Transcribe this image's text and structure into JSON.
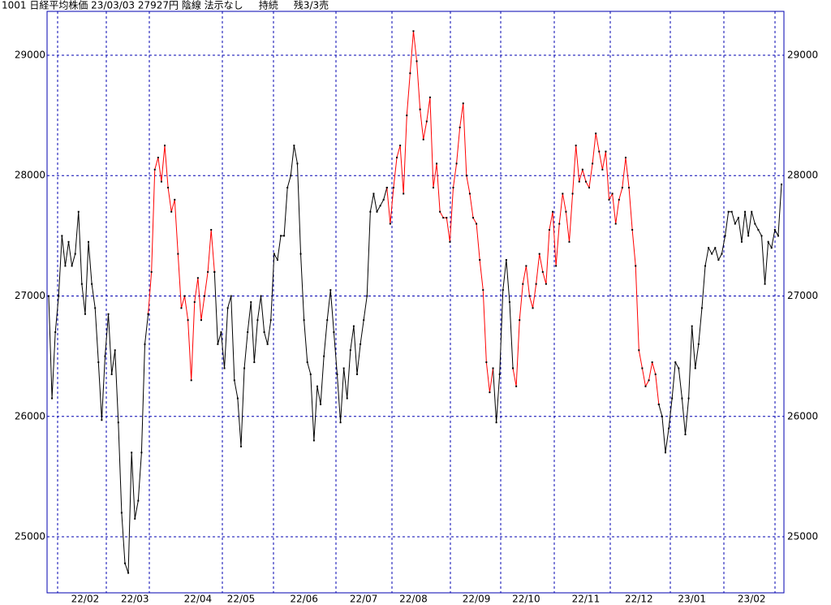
{
  "chart_data": {
    "type": "line",
    "title": "1001 日経平均株価 23/03/03 27927円 陰線 法示なし     持続     残3/3売",
    "categories": [
      null,
      null,
      null,
      null,
      null,
      null,
      null,
      null,
      null,
      null,
      null,
      "22/02",
      null,
      null,
      null,
      null,
      null,
      null,
      null,
      null,
      null,
      null,
      null,
      null,
      null,
      null,
      "22/03",
      null,
      null,
      null,
      null,
      null,
      null,
      null,
      null,
      null,
      null,
      null,
      null,
      null,
      null,
      null,
      null,
      null,
      null,
      "22/04",
      null,
      null,
      null,
      null,
      null,
      null,
      null,
      null,
      null,
      null,
      null,
      null,
      "22/05",
      null,
      null,
      null,
      null,
      null,
      null,
      null,
      null,
      null,
      null,
      null,
      null,
      null,
      null,
      null,
      null,
      null,
      null,
      "22/06",
      null,
      null,
      null,
      null,
      null,
      null,
      null,
      null,
      null,
      null,
      null,
      null,
      null,
      null,
      null,
      null,
      null,
      "22/07",
      null,
      null,
      null,
      null,
      null,
      null,
      null,
      null,
      null,
      null,
      null,
      null,
      null,
      null,
      "22/08",
      null,
      null,
      null,
      null,
      null,
      null,
      null,
      null,
      null,
      null,
      null,
      null,
      null,
      null,
      null,
      null,
      null,
      null,
      "22/09",
      null,
      null,
      null,
      null,
      null,
      null,
      null,
      null,
      null,
      null,
      null,
      null,
      null,
      null,
      "22/10",
      null,
      null,
      null,
      null,
      null,
      null,
      null,
      null,
      null,
      null,
      null,
      null,
      null,
      null,
      null,
      null,
      null,
      "22/11",
      null,
      null,
      null,
      null,
      null,
      null,
      null,
      null,
      null,
      null,
      null,
      null,
      null,
      null,
      null,
      "22/12",
      null,
      null,
      null,
      null,
      null,
      null,
      null,
      null,
      null,
      null,
      null,
      null,
      null,
      null,
      null,
      "23/01",
      null,
      null,
      null,
      null,
      null,
      null,
      null,
      null,
      null,
      null,
      null,
      null,
      null,
      null,
      null,
      null,
      null,
      "23/02",
      null,
      null,
      null,
      null,
      null,
      null,
      null,
      null,
      null
    ],
    "series": [
      {
        "color": "#000000",
        "values": [
          27000,
          26150,
          26700,
          27000,
          27500,
          27250,
          27450,
          27250,
          27350,
          27700,
          27100,
          26850,
          27450,
          27100,
          26900,
          26450,
          25970,
          26500,
          26850,
          26350,
          26550,
          25950,
          25200,
          24780,
          24700,
          25700,
          25150,
          25300,
          25700,
          26600,
          26850,
          null,
          null,
          null,
          null,
          null,
          null,
          null,
          null,
          null,
          null,
          null,
          null,
          null,
          null,
          null,
          null,
          null,
          null,
          null,
          27200,
          26600,
          26700,
          26400,
          26900,
          27000,
          26300,
          26150,
          25750,
          26400,
          26700,
          26950,
          26450,
          26800,
          27000,
          26700,
          26600,
          26800,
          27350,
          27300,
          27500,
          27500,
          27900,
          28000,
          28250,
          28100,
          27350,
          26800,
          26450,
          26350,
          25800,
          26250,
          26100,
          26500,
          26800,
          27050,
          26700,
          26350,
          25950,
          26400,
          26150,
          26550,
          26750,
          26350,
          26600,
          26800,
          27000,
          27700,
          27850,
          27700,
          27750,
          27800,
          27900,
          null,
          null,
          null,
          null,
          null,
          null,
          null,
          null,
          null,
          null,
          null,
          null,
          null,
          null,
          null,
          null,
          null,
          null,
          null,
          null,
          null,
          null,
          null,
          null,
          null,
          null,
          null,
          null,
          null,
          null,
          null,
          26400,
          25950,
          26350,
          27050,
          27300,
          26950,
          26400,
          null,
          null,
          null,
          null,
          null,
          null,
          null,
          null,
          null,
          null,
          null,
          null,
          null,
          null,
          null,
          null,
          null,
          null,
          null,
          null,
          null,
          null,
          null,
          null,
          null,
          null,
          null,
          null,
          null,
          null,
          null,
          null,
          null,
          null,
          null,
          null,
          null,
          null,
          null,
          null,
          null,
          null,
          null,
          26100,
          26000,
          25700,
          25900,
          26150,
          26450,
          26400,
          26150,
          25850,
          26150,
          26750,
          26400,
          26600,
          26900,
          27250,
          27400,
          27350,
          27400,
          27300,
          27350,
          27500,
          27700,
          27700,
          27600,
          27650,
          27450,
          27700,
          27500,
          27700,
          27600,
          27550,
          27500,
          27100,
          27450,
          27400,
          27550,
          27500,
          27927
        ]
      },
      {
        "color": "#ff0000",
        "values": [
          null,
          null,
          null,
          null,
          null,
          null,
          null,
          null,
          null,
          null,
          null,
          null,
          null,
          null,
          null,
          null,
          null,
          null,
          null,
          null,
          null,
          null,
          null,
          null,
          null,
          null,
          null,
          null,
          null,
          null,
          26850,
          27200,
          28050,
          28150,
          27950,
          28250,
          27900,
          27700,
          27800,
          27350,
          26900,
          27000,
          26800,
          26300,
          26950,
          27150,
          26800,
          27000,
          27200,
          27550,
          27200,
          null,
          null,
          null,
          null,
          null,
          null,
          null,
          null,
          null,
          null,
          null,
          null,
          null,
          null,
          null,
          null,
          null,
          null,
          null,
          null,
          null,
          null,
          null,
          null,
          null,
          null,
          null,
          null,
          null,
          null,
          null,
          null,
          null,
          null,
          null,
          null,
          null,
          null,
          null,
          null,
          null,
          null,
          null,
          null,
          null,
          null,
          null,
          null,
          null,
          null,
          null,
          27900,
          27600,
          27900,
          28150,
          28250,
          27850,
          28500,
          28850,
          29200,
          28950,
          28550,
          28300,
          28450,
          28650,
          27900,
          28100,
          27700,
          27650,
          27650,
          27450,
          27900,
          28100,
          28400,
          28600,
          28000,
          27850,
          27650,
          27600,
          27300,
          27050,
          26450,
          26200,
          26400,
          null,
          null,
          null,
          null,
          null,
          26400,
          26250,
          26800,
          27100,
          27250,
          27000,
          26900,
          27100,
          27350,
          27200,
          27100,
          27550,
          27700,
          27250,
          27600,
          27850,
          27700,
          27450,
          27850,
          28250,
          27950,
          28050,
          27950,
          27900,
          28100,
          28350,
          28200,
          28050,
          28200,
          27800,
          27850,
          27600,
          27800,
          27900,
          28150,
          27900,
          27550,
          27250,
          26550,
          26400,
          26250,
          26300,
          26450,
          26350,
          26100,
          null,
          null,
          null,
          null,
          null,
          null,
          null,
          null,
          null,
          null,
          null,
          null,
          null,
          null,
          null,
          null,
          null,
          null,
          null,
          null,
          null,
          null,
          null,
          null,
          null,
          null,
          null,
          null,
          null,
          null,
          null,
          null,
          null,
          null,
          null,
          null,
          null
        ]
      }
    ],
    "ylim": [
      24535,
      29364
    ],
    "yticks": [
      25000,
      26000,
      27000,
      28000,
      29000
    ],
    "grid": true
  }
}
